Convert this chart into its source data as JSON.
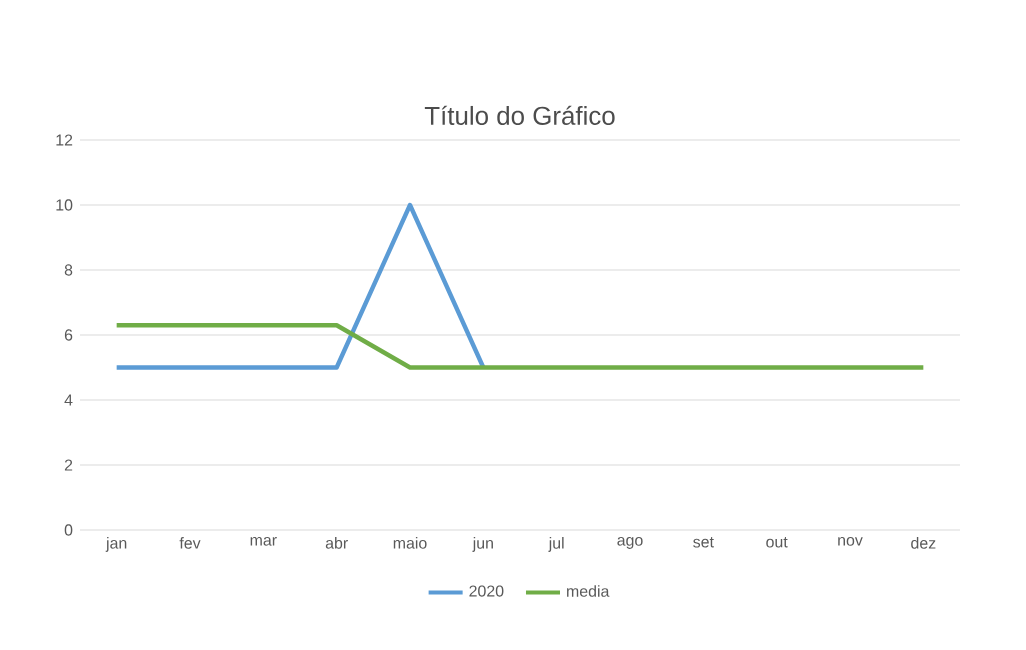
{
  "chart_data": {
    "type": "line",
    "title": "Título do Gráfico",
    "categories": [
      "jan",
      "fev",
      "mar",
      "abr",
      "maio",
      "jun",
      "jul",
      "ago",
      "set",
      "out",
      "nov",
      "dez"
    ],
    "series": [
      {
        "name": "2020",
        "color": "#5b9bd5",
        "values": [
          5,
          5,
          5,
          5,
          10,
          5,
          null,
          null,
          null,
          null,
          null,
          null
        ]
      },
      {
        "name": "media",
        "color": "#70ad47",
        "values": [
          6.3,
          6.3,
          6.3,
          6.3,
          5,
          5,
          5,
          5,
          5,
          5,
          5,
          5
        ]
      }
    ],
    "ylim": [
      0,
      12
    ],
    "yticks": [
      0,
      2,
      4,
      6,
      8,
      10,
      12
    ],
    "grid": "y",
    "legend": "bottom",
    "marker": "none",
    "line_style": "solid"
  }
}
